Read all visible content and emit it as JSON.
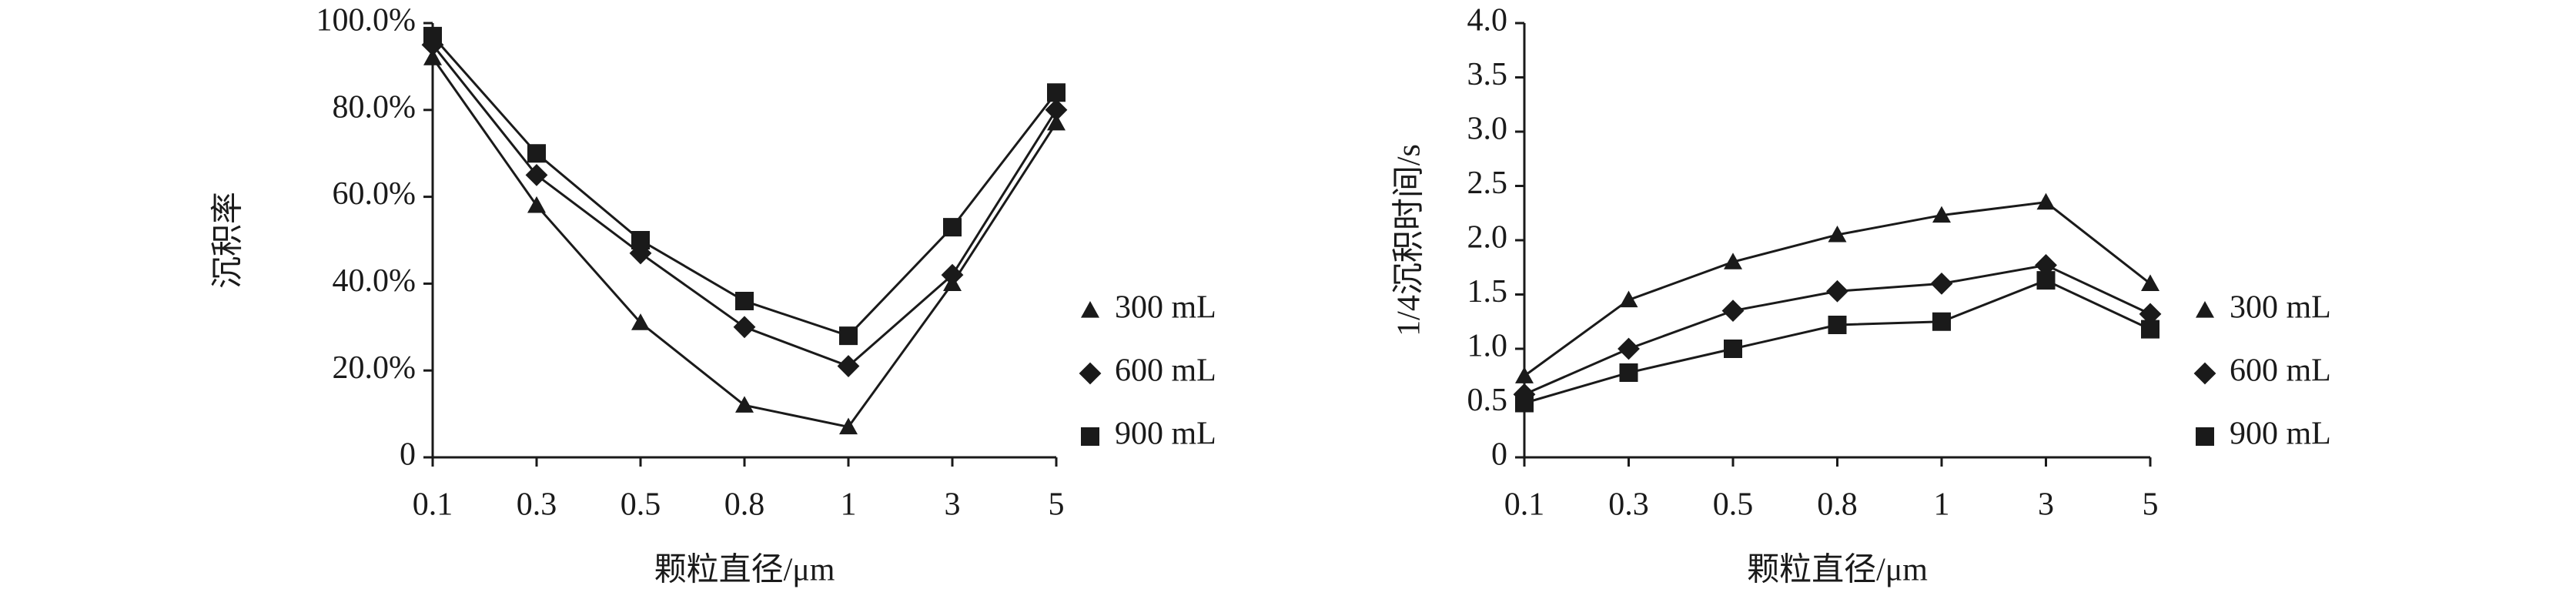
{
  "chart_data": [
    {
      "type": "line",
      "xlabel": "颗粒直径/μm",
      "ylabel": "沉积率",
      "categories": [
        "0.1",
        "0.3",
        "0.5",
        "0.8",
        "1",
        "3",
        "5"
      ],
      "series": [
        {
          "name": "300 mL",
          "color": "#1a1a1a",
          "marker": "triangle",
          "values": [
            92,
            58,
            31,
            12,
            7,
            40,
            77
          ]
        },
        {
          "name": "600 mL",
          "color": "#1a1a1a",
          "marker": "diamond",
          "values": [
            95,
            65,
            47,
            30,
            21,
            42,
            80
          ]
        },
        {
          "name": "900 mL",
          "color": "#1a1a1a",
          "marker": "square",
          "values": [
            97,
            70,
            50,
            36,
            28,
            53,
            84
          ]
        }
      ],
      "ylim": [
        0,
        100
      ],
      "yticks": [
        0,
        {
          "value": 20,
          "label": "20.0%"
        },
        {
          "value": 40,
          "label": "40.0%"
        },
        {
          "value": 60,
          "label": "60.0%"
        },
        {
          "value": 80,
          "label": "80.0%"
        },
        {
          "value": 100,
          "label": "100.0%"
        }
      ],
      "legend": "right"
    },
    {
      "type": "line",
      "xlabel": "颗粒直径/μm",
      "ylabel": "1/4沉积时间/s",
      "categories": [
        "0.1",
        "0.3",
        "0.5",
        "0.8",
        "1",
        "3",
        "5"
      ],
      "series": [
        {
          "name": "300 mL",
          "color": "#1a1a1a",
          "marker": "triangle",
          "values": [
            0.75,
            1.45,
            1.8,
            2.05,
            2.23,
            2.35,
            1.6
          ]
        },
        {
          "name": "600 mL",
          "color": "#1a1a1a",
          "marker": "diamond",
          "values": [
            0.58,
            1.0,
            1.35,
            1.53,
            1.6,
            1.77,
            1.32
          ]
        },
        {
          "name": "900 mL",
          "color": "#1a1a1a",
          "marker": "square",
          "values": [
            0.5,
            0.78,
            1.0,
            1.22,
            1.25,
            1.63,
            1.18
          ]
        }
      ],
      "ylim": [
        0,
        4
      ],
      "yticks": [
        0,
        0.5,
        {
          "value": 1,
          "label": "1.0"
        },
        1.5,
        {
          "value": 2,
          "label": "2.0"
        },
        2.5,
        {
          "value": 3,
          "label": "3.0"
        },
        3.5,
        {
          "value": 4,
          "label": "4.0"
        }
      ],
      "legend": "right"
    }
  ]
}
